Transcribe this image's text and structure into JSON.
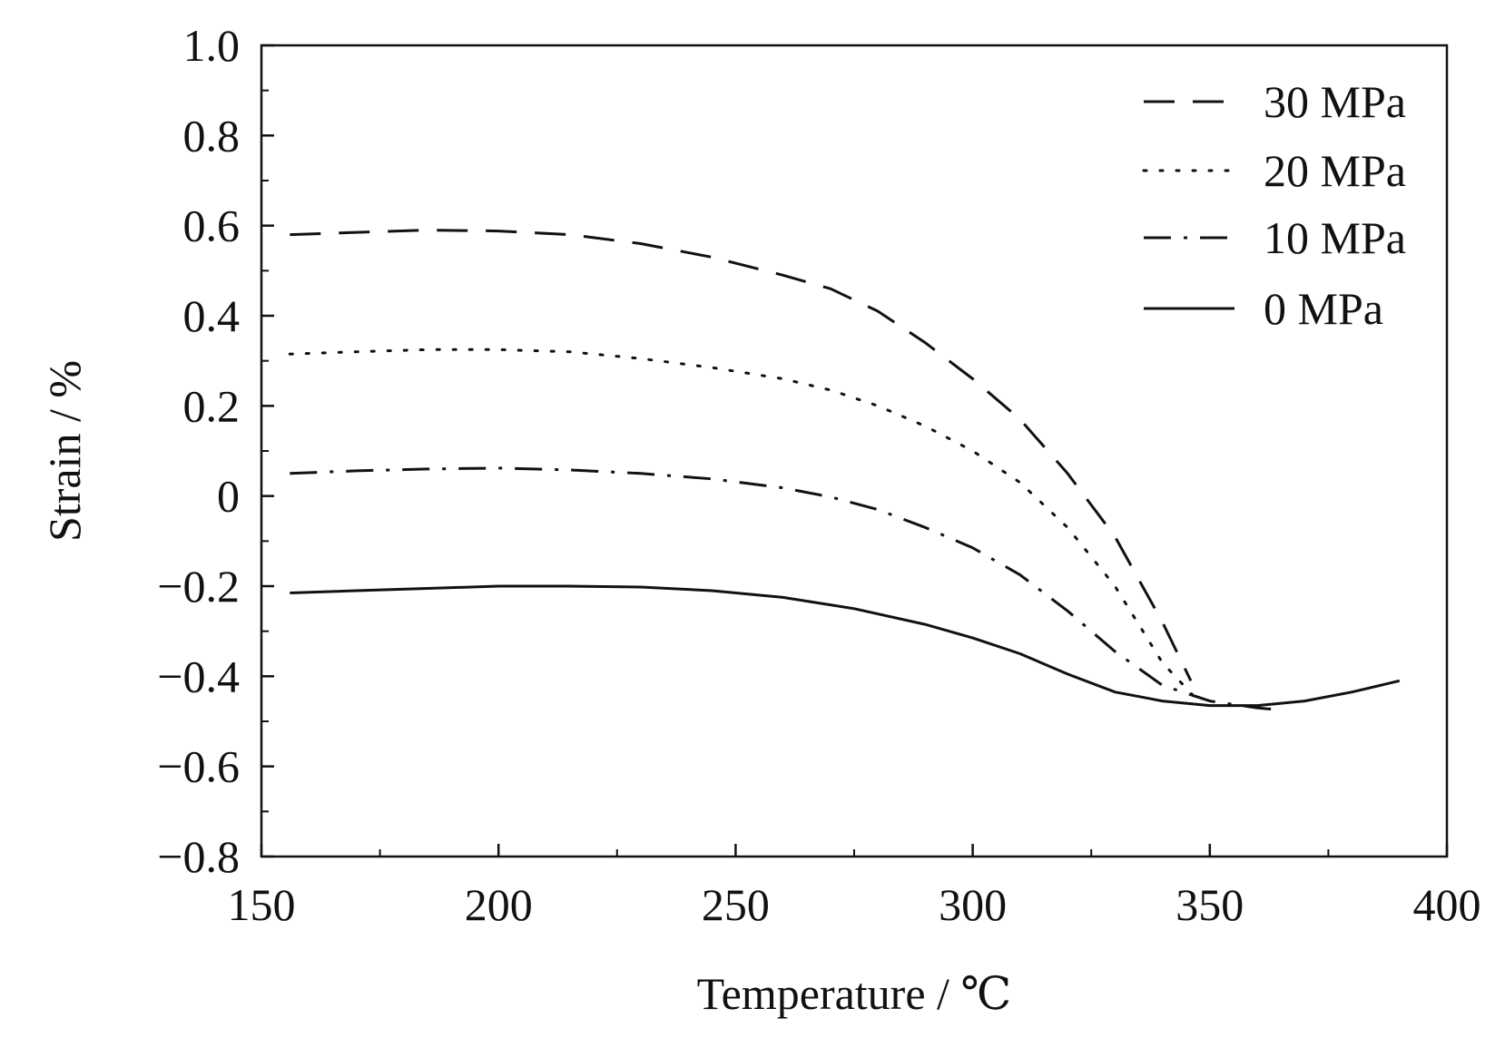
{
  "chart_data": {
    "type": "line",
    "title": "",
    "xlabel": "Temperature / ℃",
    "ylabel": "Strain / %",
    "xlim": [
      150,
      400
    ],
    "ylim": [
      -0.8,
      1.0
    ],
    "grid": false,
    "legend_position": "top-right",
    "x_ticks": [
      150,
      200,
      250,
      300,
      350,
      400
    ],
    "x_tick_labels": [
      "150",
      "200",
      "250",
      "300",
      "350",
      "400"
    ],
    "y_ticks": [
      -0.8,
      -0.6,
      -0.4,
      -0.2,
      0,
      0.2,
      0.4,
      0.6,
      0.8,
      1.0
    ],
    "y_tick_labels": [
      "−0.8",
      "−0.6",
      "−0.4",
      "−0.2",
      "0",
      "0.2",
      "0.4",
      "0.6",
      "0.8",
      "1.0"
    ],
    "colors": {
      "line": "#111111",
      "axis": "#111111",
      "background": "#ffffff"
    },
    "series": [
      {
        "name": "30 MPa",
        "style": "dashed",
        "x": [
          156,
          170,
          185,
          200,
          215,
          230,
          245,
          260,
          270,
          280,
          290,
          300,
          310,
          320,
          330,
          340,
          346
        ],
        "y": [
          0.58,
          0.585,
          0.59,
          0.588,
          0.58,
          0.56,
          0.53,
          0.49,
          0.46,
          0.41,
          0.34,
          0.26,
          0.17,
          0.05,
          -0.09,
          -0.28,
          -0.41
        ]
      },
      {
        "name": "20 MPa",
        "style": "dotted",
        "x": [
          156,
          170,
          185,
          200,
          215,
          230,
          245,
          260,
          270,
          280,
          290,
          300,
          310,
          320,
          330,
          340,
          348
        ],
        "y": [
          0.315,
          0.32,
          0.325,
          0.325,
          0.32,
          0.305,
          0.285,
          0.26,
          0.235,
          0.2,
          0.155,
          0.1,
          0.03,
          -0.07,
          -0.2,
          -0.37,
          -0.46
        ]
      },
      {
        "name": "10 MPa",
        "style": "dashdot",
        "x": [
          156,
          170,
          185,
          200,
          215,
          230,
          245,
          260,
          270,
          280,
          290,
          300,
          310,
          320,
          330,
          340,
          350,
          360,
          365
        ],
        "y": [
          0.05,
          0.056,
          0.06,
          0.062,
          0.058,
          0.05,
          0.038,
          0.018,
          -0.002,
          -0.03,
          -0.07,
          -0.115,
          -0.175,
          -0.255,
          -0.345,
          -0.42,
          -0.455,
          -0.47,
          -0.475
        ]
      },
      {
        "name": "0 MPa",
        "style": "solid",
        "x": [
          156,
          170,
          185,
          200,
          215,
          230,
          245,
          260,
          275,
          290,
          300,
          310,
          320,
          330,
          340,
          350,
          360,
          370,
          380,
          390
        ],
        "y": [
          -0.215,
          -0.21,
          -0.205,
          -0.2,
          -0.2,
          -0.202,
          -0.21,
          -0.225,
          -0.25,
          -0.285,
          -0.315,
          -0.35,
          -0.395,
          -0.435,
          -0.455,
          -0.465,
          -0.465,
          -0.455,
          -0.435,
          -0.41
        ]
      }
    ]
  }
}
